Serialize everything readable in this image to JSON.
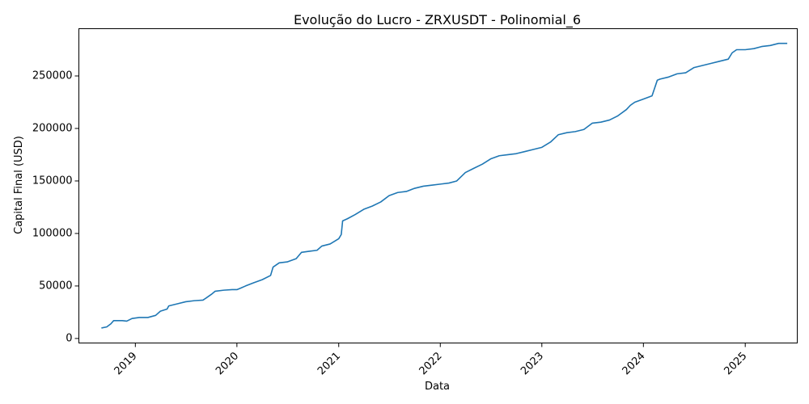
{
  "chart_data": {
    "type": "line",
    "title": "Evolução do Lucro - ZRXUSDT - Polinomial_6",
    "xlabel": "Data",
    "ylabel": "Capital Final (USD)",
    "x_range": [
      "2018-06-12",
      "2025-07-07"
    ],
    "ylim": [
      -4300,
      295000
    ],
    "x_ticks": [
      {
        "date": "2019-01-01",
        "label": "2019"
      },
      {
        "date": "2020-01-01",
        "label": "2020"
      },
      {
        "date": "2021-01-01",
        "label": "2021"
      },
      {
        "date": "2022-01-01",
        "label": "2022"
      },
      {
        "date": "2023-01-01",
        "label": "2023"
      },
      {
        "date": "2024-01-01",
        "label": "2024"
      },
      {
        "date": "2025-01-01",
        "label": "2025"
      }
    ],
    "y_ticks": [
      {
        "value": 0,
        "label": "0"
      },
      {
        "value": 50000,
        "label": "50000"
      },
      {
        "value": 100000,
        "label": "100000"
      },
      {
        "value": 150000,
        "label": "150000"
      },
      {
        "value": 200000,
        "label": "200000"
      },
      {
        "value": 250000,
        "label": "250000"
      }
    ],
    "grid": false,
    "color": "#1f77b4",
    "series": [
      {
        "x": [
          "2018-09-01",
          "2018-09-20",
          "2018-10-05",
          "2018-10-15",
          "2018-11-15",
          "2018-12-01",
          "2018-12-20",
          "2019-01-15",
          "2019-02-15",
          "2019-03-15",
          "2019-04-01",
          "2019-04-25",
          "2019-05-01",
          "2019-06-01",
          "2019-07-01",
          "2019-08-01",
          "2019-09-01",
          "2019-09-15",
          "2019-10-01",
          "2019-10-15",
          "2019-11-15",
          "2019-12-15",
          "2020-01-01",
          "2020-01-15",
          "2020-02-01",
          "2020-03-01",
          "2020-04-01",
          "2020-05-01",
          "2020-05-10",
          "2020-06-01",
          "2020-07-01",
          "2020-08-01",
          "2020-08-20",
          "2020-09-15",
          "2020-10-15",
          "2020-11-01",
          "2020-12-01",
          "2021-01-01",
          "2021-01-10",
          "2021-01-15",
          "2021-02-01",
          "2021-03-01",
          "2021-04-01",
          "2021-05-01",
          "2021-06-01",
          "2021-07-01",
          "2021-08-01",
          "2021-09-01",
          "2021-10-01",
          "2021-11-01",
          "2021-12-01",
          "2022-01-01",
          "2022-02-01",
          "2022-03-01",
          "2022-04-01",
          "2022-05-01",
          "2022-06-01",
          "2022-07-01",
          "2022-08-01",
          "2022-09-01",
          "2022-10-01",
          "2022-11-01",
          "2022-12-01",
          "2023-01-01",
          "2023-02-01",
          "2023-03-01",
          "2023-04-01",
          "2023-05-01",
          "2023-06-01",
          "2023-07-01",
          "2023-08-01",
          "2023-09-01",
          "2023-10-01",
          "2023-11-01",
          "2023-11-15",
          "2023-12-01",
          "2024-01-01",
          "2024-02-01",
          "2024-02-20",
          "2024-03-01",
          "2024-04-01",
          "2024-05-01",
          "2024-06-01",
          "2024-07-01",
          "2024-08-01",
          "2024-09-01",
          "2024-10-01",
          "2024-11-01",
          "2024-11-15",
          "2024-12-01",
          "2025-01-01",
          "2025-02-01",
          "2025-03-01",
          "2025-04-01",
          "2025-05-01",
          "2025-06-01"
        ],
        "y": [
          10000,
          11000,
          14000,
          17000,
          17000,
          16500,
          19000,
          20000,
          20000,
          22000,
          26000,
          28000,
          31000,
          33000,
          35000,
          36000,
          36500,
          39000,
          42000,
          45000,
          46000,
          46500,
          46500,
          48000,
          50000,
          53000,
          56000,
          60000,
          68000,
          72000,
          73000,
          76000,
          82000,
          83000,
          84000,
          88000,
          90000,
          95000,
          99000,
          112000,
          114000,
          118000,
          123000,
          126000,
          130000,
          136000,
          139000,
          140000,
          143000,
          145000,
          146000,
          147000,
          148000,
          150000,
          158000,
          162000,
          166000,
          171000,
          174000,
          175000,
          176000,
          178000,
          180000,
          182000,
          187000,
          194000,
          196000,
          197000,
          199000,
          205000,
          206000,
          208000,
          212000,
          218000,
          222000,
          225000,
          228000,
          231000,
          246000,
          247000,
          249000,
          252000,
          253000,
          258000,
          260000,
          262000,
          264000,
          266000,
          272000,
          275000,
          275000,
          276000,
          278000,
          279000,
          281000,
          281000
        ]
      }
    ]
  }
}
